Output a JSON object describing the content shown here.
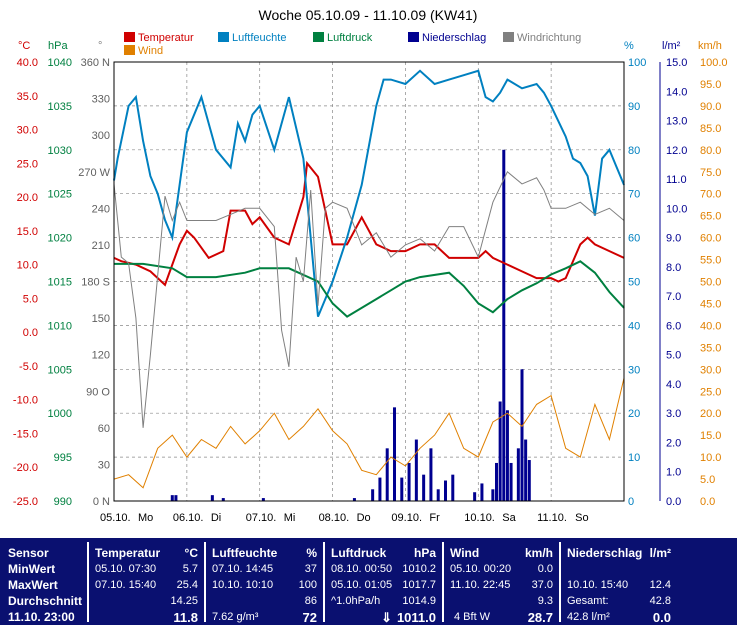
{
  "title": "Woche 05.10.09 - 11.10.09 (KW41)",
  "legend": [
    {
      "label": "Temperatur",
      "color": "#d00000"
    },
    {
      "label": "Wind",
      "color": "#e08000"
    },
    {
      "label": "Luftfeuchte",
      "color": "#0080c0"
    },
    {
      "label": "Luftdruck",
      "color": "#008040"
    },
    {
      "label": "Niederschlag",
      "color": "#000090"
    },
    {
      "label": "Windrichtung",
      "color": "#808080"
    }
  ],
  "axes_units": {
    "temp": "°C",
    "pressure": "hPa",
    "direction": "°",
    "humidity": "%",
    "rain": "l/m²",
    "wind": "km/h"
  },
  "chart_data": {
    "type": "line",
    "title": "Woche 05.10.09 - 11.10.09 (KW41)",
    "x_labels": [
      "05.10.",
      "06.10.",
      "07.10.",
      "08.10.",
      "09.10.",
      "10.10.",
      "11.10."
    ],
    "day_labels": [
      "Mo",
      "Di",
      "Mi",
      "Do",
      "Fr",
      "Sa",
      "So"
    ],
    "x_range_days": [
      0,
      7
    ],
    "grid": true,
    "axes": {
      "temp": {
        "range": [
          -25,
          40
        ],
        "ticks": [
          "40.0",
          "35.0",
          "30.0",
          "25.0",
          "20.0",
          "15.0",
          "10.0",
          "5.0",
          "0.0",
          "-5.0",
          "-10.0",
          "-15.0",
          "-20.0",
          "-25.0"
        ]
      },
      "pressure": {
        "range": [
          990,
          1040
        ],
        "ticks": [
          "1040",
          "1035",
          "1030",
          "1025",
          "1020",
          "1015",
          "1010",
          "1005",
          "1000",
          "995",
          "990"
        ]
      },
      "direction": {
        "range": [
          0,
          360
        ],
        "ticks": [
          "360 N",
          "330",
          "300",
          "270 W",
          "240",
          "210",
          "180 S",
          "150",
          "120",
          "90 O",
          "60",
          "30",
          "0 N"
        ]
      },
      "humidity": {
        "range": [
          0,
          100
        ],
        "ticks": [
          "100",
          "90",
          "80",
          "70",
          "60",
          "50",
          "40",
          "30",
          "20",
          "10",
          "0"
        ]
      },
      "rain": {
        "range": [
          0,
          15
        ],
        "ticks": [
          "15.0",
          "14.0",
          "13.0",
          "12.0",
          "11.0",
          "10.0",
          "9.0",
          "8.0",
          "7.0",
          "6.0",
          "5.0",
          "4.0",
          "3.0",
          "2.0",
          "1.0",
          "0.0"
        ]
      },
      "wind": {
        "range": [
          0,
          100
        ],
        "ticks": [
          "100.0",
          "95.0",
          "90.0",
          "85.0",
          "80.0",
          "75.0",
          "70.0",
          "65.0",
          "60.0",
          "55.0",
          "50.0",
          "45.0",
          "40.0",
          "35.0",
          "30.0",
          "25.0",
          "20.0",
          "15.0",
          "10.0",
          "5.0",
          "0.0"
        ]
      }
    },
    "series": [
      {
        "name": "Temperatur",
        "axis": "temp",
        "color": "#d00000",
        "x": [
          0,
          0.1,
          0.3,
          0.5,
          0.7,
          0.8,
          0.9,
          1.0,
          1.1,
          1.3,
          1.5,
          1.6,
          1.8,
          1.9,
          2.0,
          2.2,
          2.4,
          2.6,
          2.65,
          2.8,
          3.0,
          3.2,
          3.4,
          3.6,
          3.8,
          4.0,
          4.2,
          4.4,
          4.6,
          4.8,
          5.0,
          5.1,
          5.2,
          5.4,
          5.6,
          5.8,
          6.0,
          6.1,
          6.2,
          6.4,
          6.5,
          6.6,
          6.8,
          7.0
        ],
        "y": [
          11,
          10.5,
          10,
          9,
          7,
          10,
          13,
          15,
          14,
          11,
          12,
          18,
          18,
          16,
          17,
          14,
          13,
          20,
          25,
          23,
          13,
          13,
          17,
          13,
          12,
          12,
          13,
          13,
          11,
          11,
          11,
          12,
          11,
          10,
          9,
          8,
          8,
          7.5,
          8,
          13,
          14,
          13,
          12,
          11
        ]
      },
      {
        "name": "Luftfeuchte",
        "axis": "humidity",
        "color": "#0080c0",
        "x": [
          0,
          0.05,
          0.2,
          0.3,
          0.4,
          0.5,
          0.6,
          0.7,
          0.8,
          0.9,
          1.0,
          1.2,
          1.4,
          1.6,
          1.7,
          1.8,
          1.9,
          2.0,
          2.2,
          2.4,
          2.6,
          2.8,
          3.0,
          3.2,
          3.4,
          3.6,
          3.7,
          3.8,
          4.0,
          4.2,
          4.4,
          4.6,
          4.8,
          5.0,
          5.1,
          5.2,
          5.3,
          5.4,
          5.6,
          5.8,
          5.9,
          6.0,
          6.2,
          6.3,
          6.4,
          6.5,
          6.6,
          6.7,
          6.8,
          6.9,
          7.0
        ],
        "y": [
          73,
          78,
          90,
          92,
          82,
          74,
          70,
          64,
          60,
          72,
          84,
          92,
          80,
          76,
          86,
          82,
          88,
          90,
          80,
          92,
          78,
          42,
          50,
          60,
          72,
          90,
          96,
          96,
          95,
          98,
          95,
          96,
          97,
          98,
          92,
          91,
          93,
          96,
          94,
          95,
          93,
          90,
          83,
          78,
          77,
          74,
          65,
          78,
          80,
          76,
          72
        ]
      },
      {
        "name": "Luftdruck",
        "axis": "pressure",
        "color": "#008040",
        "x": [
          0,
          0.4,
          0.8,
          1.0,
          1.4,
          1.8,
          2.0,
          2.4,
          2.8,
          3.0,
          3.2,
          3.6,
          3.8,
          4.0,
          4.2,
          4.6,
          4.8,
          5.0,
          5.2,
          5.4,
          5.6,
          5.8,
          6.0,
          6.2,
          6.4,
          6.6,
          6.8,
          7.0
        ],
        "y": [
          1017,
          1017,
          1016.5,
          1015.5,
          1015.5,
          1016,
          1016.5,
          1016.5,
          1015,
          1012.5,
          1011,
          1013,
          1014,
          1015,
          1015.5,
          1016,
          1014.5,
          1012.5,
          1011.5,
          1013,
          1014,
          1014.8,
          1015.8,
          1016.5,
          1017.3,
          1016,
          1013.8,
          1012
        ]
      },
      {
        "name": "Wind",
        "axis": "wind",
        "color": "#e08000",
        "x": [
          0,
          0.2,
          0.4,
          0.6,
          0.8,
          1.0,
          1.2,
          1.4,
          1.6,
          1.8,
          2.0,
          2.2,
          2.4,
          2.6,
          2.8,
          3.0,
          3.2,
          3.4,
          3.6,
          3.8,
          4.0,
          4.2,
          4.4,
          4.6,
          4.8,
          5.0,
          5.2,
          5.4,
          5.6,
          5.8,
          6.0,
          6.2,
          6.4,
          6.6,
          6.8,
          7.0
        ],
        "y": [
          5,
          6,
          3,
          12,
          15,
          10,
          14,
          12,
          17,
          13,
          16,
          20,
          14,
          17,
          21,
          16,
          13,
          7,
          6,
          10,
          8,
          12,
          15,
          20,
          12,
          10,
          18,
          20,
          17,
          22,
          24,
          12,
          10,
          22,
          14,
          28
        ]
      },
      {
        "name": "Windrichtung",
        "axis": "direction",
        "color": "#808080",
        "x": [
          0,
          0.1,
          0.2,
          0.3,
          0.4,
          0.5,
          0.6,
          0.7,
          0.8,
          0.9,
          1.0,
          1.2,
          1.4,
          1.6,
          1.8,
          2.0,
          2.2,
          2.3,
          2.4,
          2.5,
          2.6,
          2.7,
          2.8,
          2.9,
          3.0,
          3.2,
          3.4,
          3.6,
          3.8,
          4.0,
          4.2,
          4.4,
          4.6,
          4.8,
          5.0,
          5.2,
          5.4,
          5.6,
          5.8,
          5.9,
          6.0,
          6.2,
          6.4,
          6.6,
          6.8,
          7.0
        ],
        "y": [
          260,
          200,
          195,
          150,
          60,
          120,
          185,
          250,
          230,
          245,
          230,
          230,
          230,
          235,
          240,
          240,
          225,
          140,
          110,
          200,
          180,
          255,
          160,
          240,
          245,
          240,
          210,
          220,
          200,
          210,
          215,
          205,
          225,
          225,
          200,
          245,
          270,
          260,
          265,
          255,
          240,
          240,
          245,
          235,
          240,
          230
        ]
      },
      {
        "name": "Niederschlag",
        "axis": "rain",
        "color": "#000090",
        "x": [
          0.8,
          0.85,
          1.35,
          1.5,
          2.05,
          3.3,
          3.55,
          3.65,
          3.75,
          3.85,
          3.95,
          4.05,
          4.15,
          4.25,
          4.35,
          4.45,
          4.55,
          4.65,
          4.95,
          5.05,
          5.2,
          5.25,
          5.3,
          5.35,
          5.4,
          5.45,
          5.55,
          5.6,
          5.65,
          5.7
        ],
        "y": [
          0.2,
          0.2,
          0.2,
          0.1,
          0.1,
          0.1,
          0.4,
          0.8,
          1.8,
          3.2,
          0.8,
          1.3,
          2.1,
          0.9,
          1.8,
          0.4,
          0.7,
          0.9,
          0.3,
          0.6,
          0.4,
          1.3,
          3.4,
          12.0,
          3.1,
          1.3,
          1.8,
          4.5,
          2.1,
          1.4
        ]
      }
    ]
  },
  "panel": {
    "sensor": {
      "header": "Sensor",
      "rows": [
        "MinWert",
        "MaxWert",
        "Durchschnitt",
        "11.10. 23:00"
      ]
    },
    "temperature": {
      "header": "Temperatur",
      "unit": "°C",
      "min_time": "05.10.  07:30",
      "min_val": "5.7",
      "max_time": "07.10.  15:40",
      "max_val": "25.4",
      "avg": "14.25",
      "current": "11.8"
    },
    "humidity": {
      "header": "Luftfeuchte",
      "unit": "%",
      "min_time": "07.10.  14:45",
      "min_val": "37",
      "max_time": "10.10.  10:10",
      "max_val": "100",
      "avg": "86",
      "abs": "7.62 g/m³",
      "current": "72"
    },
    "pressure": {
      "header": "Luftdruck",
      "unit": "hPa",
      "min_time": "08.10.  00:50",
      "min_val": "1010.2",
      "max_time": "05.10.  01:05",
      "max_val": "1017.7",
      "trend_label": "^1.0hPa/h",
      "avg": "1014.9",
      "trend_arrow": "⇓",
      "current": "1011.0"
    },
    "wind": {
      "header": "Wind",
      "unit": "km/h",
      "min_time": "05.10.  00:20",
      "min_val": "0.0",
      "max_time": "11.10.  22:45",
      "max_val": "37.0",
      "avg": "9.3",
      "bft": "4 Bft W",
      "current": "28.7"
    },
    "rain": {
      "header": "Niederschlag",
      "unit": "l/m²",
      "max_time": "10.10.  15:40",
      "max_val": "12.4",
      "total_label": "Gesamt:",
      "total": "42.8",
      "current_sub": "42.8 l/m²",
      "current": "0.0"
    }
  }
}
